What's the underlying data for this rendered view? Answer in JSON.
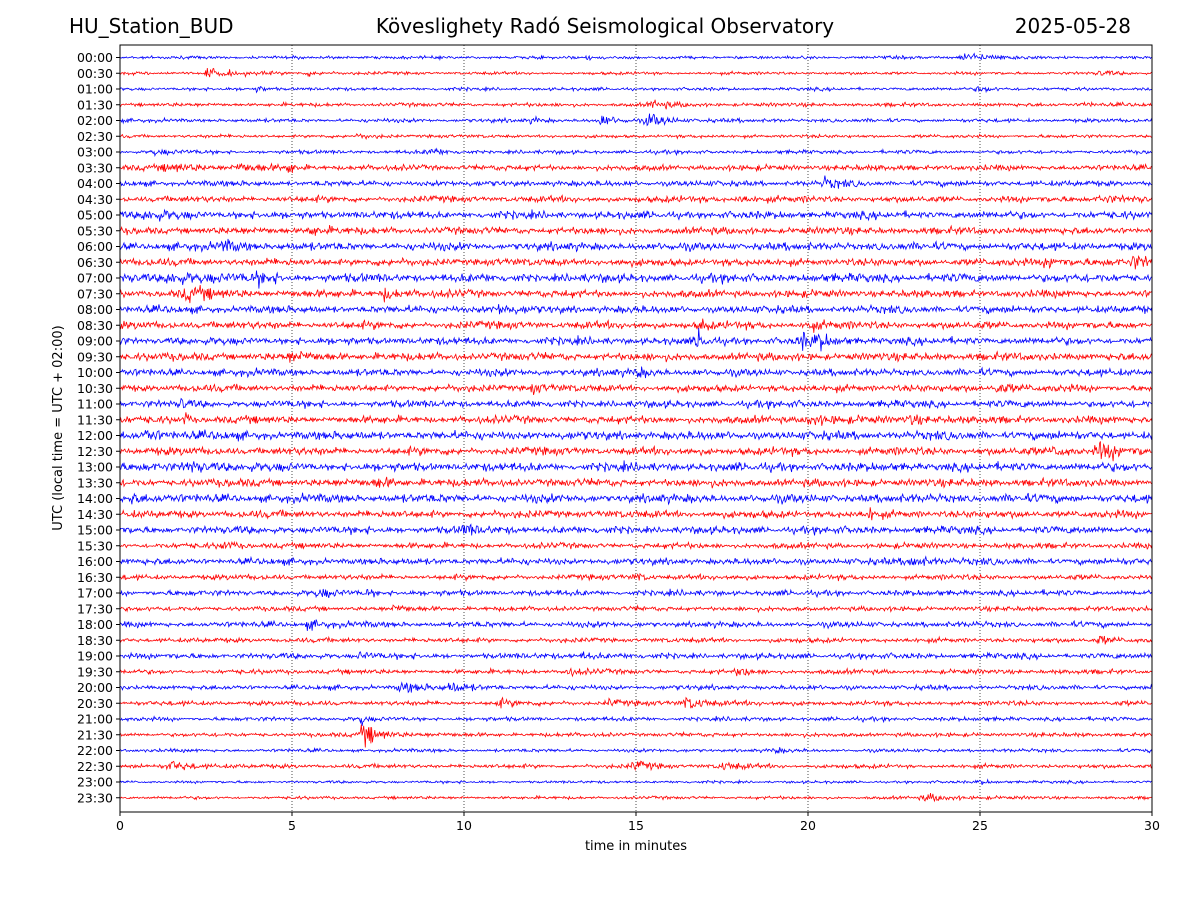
{
  "header": {
    "station": "HU_Station_BUD",
    "observatory": "Köveslighety Radó Seismological Observatory",
    "date": "2025-05-28"
  },
  "chart_data": {
    "type": "line",
    "title": "Köveslighety Radó Seismological Observatory",
    "xlabel": "time in minutes",
    "ylabel": "UTC (local time = UTC + 02:00)",
    "xlim": [
      0,
      30
    ],
    "xticks": [
      0,
      5,
      10,
      15,
      20,
      25,
      30
    ],
    "grid": "vertical dotted",
    "colors": [
      "#0000ff",
      "#ff0000"
    ],
    "rows": [
      {
        "label": "00:00",
        "amp": 1.6,
        "events": [
          {
            "t": 24.6,
            "a": 5,
            "w": 0.8
          },
          {
            "t": 13.6,
            "a": 2.5,
            "w": 0.3
          }
        ]
      },
      {
        "label": "00:30",
        "amp": 1.6,
        "events": [
          {
            "t": 2.6,
            "a": 6,
            "w": 0.6
          },
          {
            "t": 5.5,
            "a": 3,
            "w": 0.4
          },
          {
            "t": 28.5,
            "a": 3,
            "w": 0.3
          }
        ]
      },
      {
        "label": "01:00",
        "amp": 1.7,
        "events": [
          {
            "t": 4.0,
            "a": 3,
            "w": 0.3
          },
          {
            "t": 25.0,
            "a": 3,
            "w": 0.5
          }
        ]
      },
      {
        "label": "01:30",
        "amp": 2.0,
        "events": [
          {
            "t": 15.5,
            "a": 4,
            "w": 0.6
          },
          {
            "t": 28.0,
            "a": 3,
            "w": 0.3
          }
        ]
      },
      {
        "label": "02:00",
        "amp": 2.0,
        "events": [
          {
            "t": 14.0,
            "a": 7,
            "w": 0.3
          },
          {
            "t": 15.4,
            "a": 8,
            "w": 0.5
          },
          {
            "t": 12.0,
            "a": 3,
            "w": 0.3
          }
        ]
      },
      {
        "label": "02:30",
        "amp": 1.8,
        "events": [
          {
            "t": 7.0,
            "a": 2.5,
            "w": 0.4
          }
        ]
      },
      {
        "label": "03:00",
        "amp": 2.0,
        "events": [
          {
            "t": 9.0,
            "a": 4,
            "w": 0.4
          },
          {
            "t": 1.0,
            "a": 2.5,
            "w": 0.5
          }
        ]
      },
      {
        "label": "03:30",
        "amp": 3.0,
        "events": [
          {
            "t": 1.5,
            "a": 4,
            "w": 1.0
          },
          {
            "t": 4.9,
            "a": 8,
            "w": 0.1
          },
          {
            "t": 3.5,
            "a": 4,
            "w": 0.5
          }
        ]
      },
      {
        "label": "04:00",
        "amp": 3.0,
        "events": [
          {
            "t": 20.5,
            "a": 5,
            "w": 0.4
          }
        ]
      },
      {
        "label": "04:30",
        "amp": 3.3,
        "events": [
          {
            "t": 18.0,
            "a": 5,
            "w": 0.3
          },
          {
            "t": 28.5,
            "a": 4,
            "w": 0.5
          }
        ]
      },
      {
        "label": "05:00",
        "amp": 4.0,
        "events": [
          {
            "t": 0.8,
            "a": 5,
            "w": 0.6
          }
        ]
      },
      {
        "label": "05:30",
        "amp": 3.8,
        "events": [
          {
            "t": 5.5,
            "a": 5,
            "w": 0.4
          }
        ]
      },
      {
        "label": "06:00",
        "amp": 4.2,
        "events": [
          {
            "t": 3.0,
            "a": 5,
            "w": 0.5
          }
        ]
      },
      {
        "label": "06:30",
        "amp": 4.0,
        "events": [
          {
            "t": 27.0,
            "a": 6,
            "w": 0.5
          },
          {
            "t": 29.5,
            "a": 6,
            "w": 0.4
          }
        ]
      },
      {
        "label": "07:00",
        "amp": 4.6,
        "events": [
          {
            "t": 1.5,
            "a": 7,
            "w": 0.8
          },
          {
            "t": 4.0,
            "a": 5,
            "w": 0.5
          }
        ]
      },
      {
        "label": "07:30",
        "amp": 4.0,
        "events": [
          {
            "t": 2.0,
            "a": 6,
            "w": 0.8
          },
          {
            "t": 7.7,
            "a": 7,
            "w": 0.3
          }
        ]
      },
      {
        "label": "08:00",
        "amp": 4.0,
        "events": [
          {
            "t": 11.0,
            "a": 5,
            "w": 0.4
          }
        ]
      },
      {
        "label": "08:30",
        "amp": 4.0,
        "events": [
          {
            "t": 16.9,
            "a": 8,
            "w": 0.1
          },
          {
            "t": 20.0,
            "a": 5,
            "w": 0.3
          }
        ]
      },
      {
        "label": "09:00",
        "amp": 4.0,
        "events": [
          {
            "t": 16.8,
            "a": 14,
            "w": 0.15
          },
          {
            "t": 19.8,
            "a": 9,
            "w": 0.3
          },
          {
            "t": 20.3,
            "a": 8,
            "w": 0.3
          }
        ]
      },
      {
        "label": "09:30",
        "amp": 4.2,
        "events": [
          {
            "t": 5.0,
            "a": 5,
            "w": 0.5
          }
        ]
      },
      {
        "label": "10:00",
        "amp": 3.8,
        "events": [
          {
            "t": 15.0,
            "a": 5,
            "w": 0.3
          }
        ]
      },
      {
        "label": "10:30",
        "amp": 3.8,
        "events": [
          {
            "t": 25.5,
            "a": 6,
            "w": 0.4
          },
          {
            "t": 12.0,
            "a": 5,
            "w": 0.3
          }
        ]
      },
      {
        "label": "11:00",
        "amp": 3.8,
        "events": [
          {
            "t": 1.8,
            "a": 7,
            "w": 0.1
          }
        ]
      },
      {
        "label": "11:30",
        "amp": 4.0,
        "events": [
          {
            "t": 1.9,
            "a": 9,
            "w": 0.08
          },
          {
            "t": 20.0,
            "a": 6,
            "w": 0.5
          },
          {
            "t": 23.0,
            "a": 5,
            "w": 0.4
          }
        ]
      },
      {
        "label": "12:00",
        "amp": 4.6,
        "events": [
          {
            "t": 0.8,
            "a": 6,
            "w": 0.5
          }
        ]
      },
      {
        "label": "12:30",
        "amp": 4.2,
        "events": [
          {
            "t": 28.5,
            "a": 9,
            "w": 0.6
          },
          {
            "t": 27.2,
            "a": 6,
            "w": 0.3
          }
        ]
      },
      {
        "label": "13:00",
        "amp": 4.6,
        "events": [
          {
            "t": 2.0,
            "a": 6,
            "w": 0.6
          }
        ]
      },
      {
        "label": "13:30",
        "amp": 4.2,
        "events": [
          {
            "t": 7.5,
            "a": 5,
            "w": 0.4
          }
        ]
      },
      {
        "label": "14:00",
        "amp": 4.6,
        "events": [
          {
            "t": 0.3,
            "a": 6,
            "w": 0.3
          }
        ]
      },
      {
        "label": "14:30",
        "amp": 4.0,
        "events": [
          {
            "t": 21.8,
            "a": 8,
            "w": 0.1
          }
        ]
      },
      {
        "label": "15:00",
        "amp": 4.0,
        "events": [
          {
            "t": 10.0,
            "a": 5,
            "w": 0.4
          }
        ]
      },
      {
        "label": "15:30",
        "amp": 3.0,
        "events": [
          {
            "t": 3.0,
            "a": 5,
            "w": 0.3
          }
        ]
      },
      {
        "label": "16:00",
        "amp": 3.5,
        "events": [
          {
            "t": 23.0,
            "a": 6,
            "w": 0.6
          }
        ]
      },
      {
        "label": "16:30",
        "amp": 2.8,
        "events": [
          {
            "t": 15.0,
            "a": 4,
            "w": 0.3
          }
        ]
      },
      {
        "label": "17:00",
        "amp": 3.0,
        "events": [
          {
            "t": 5.8,
            "a": 5,
            "w": 0.3
          },
          {
            "t": 7.2,
            "a": 4,
            "w": 0.2
          }
        ]
      },
      {
        "label": "17:30",
        "amp": 2.5,
        "events": [
          {
            "t": 8.0,
            "a": 4,
            "w": 0.3
          }
        ]
      },
      {
        "label": "18:00",
        "amp": 3.0,
        "events": [
          {
            "t": 5.5,
            "a": 5,
            "w": 0.4
          }
        ]
      },
      {
        "label": "18:30",
        "amp": 2.5,
        "events": [
          {
            "t": 28.5,
            "a": 5,
            "w": 0.4
          }
        ]
      },
      {
        "label": "19:00",
        "amp": 3.0,
        "events": [
          {
            "t": 7.0,
            "a": 4,
            "w": 0.3
          },
          {
            "t": 13.5,
            "a": 4,
            "w": 0.3
          }
        ]
      },
      {
        "label": "19:30",
        "amp": 2.5,
        "events": [
          {
            "t": 18.0,
            "a": 5,
            "w": 0.3
          },
          {
            "t": 13.0,
            "a": 4,
            "w": 0.4
          }
        ]
      },
      {
        "label": "20:00",
        "amp": 2.5,
        "events": [
          {
            "t": 8.2,
            "a": 6,
            "w": 0.6
          },
          {
            "t": 9.6,
            "a": 5,
            "w": 0.5
          }
        ]
      },
      {
        "label": "20:30",
        "amp": 2.5,
        "events": [
          {
            "t": 16.5,
            "a": 7,
            "w": 0.6
          },
          {
            "t": 14.2,
            "a": 4,
            "w": 0.3
          },
          {
            "t": 11.0,
            "a": 4,
            "w": 0.4
          }
        ]
      },
      {
        "label": "21:00",
        "amp": 2.2,
        "events": [
          {
            "t": 7.0,
            "a": 9,
            "w": 0.08
          }
        ]
      },
      {
        "label": "21:30",
        "amp": 2.2,
        "events": [
          {
            "t": 7.1,
            "a": 13,
            "w": 0.5
          }
        ]
      },
      {
        "label": "22:00",
        "amp": 1.8,
        "events": [
          {
            "t": 19.0,
            "a": 3,
            "w": 0.3
          }
        ]
      },
      {
        "label": "22:30",
        "amp": 2.2,
        "events": [
          {
            "t": 1.5,
            "a": 6,
            "w": 0.6
          },
          {
            "t": 15.0,
            "a": 5,
            "w": 0.5
          },
          {
            "t": 17.5,
            "a": 4,
            "w": 0.5
          }
        ]
      },
      {
        "label": "23:00",
        "amp": 1.4,
        "events": [
          {
            "t": 25.0,
            "a": 2.5,
            "w": 0.4
          }
        ]
      },
      {
        "label": "23:30",
        "amp": 1.6,
        "events": [
          {
            "t": 23.5,
            "a": 4,
            "w": 0.8
          }
        ]
      }
    ]
  }
}
